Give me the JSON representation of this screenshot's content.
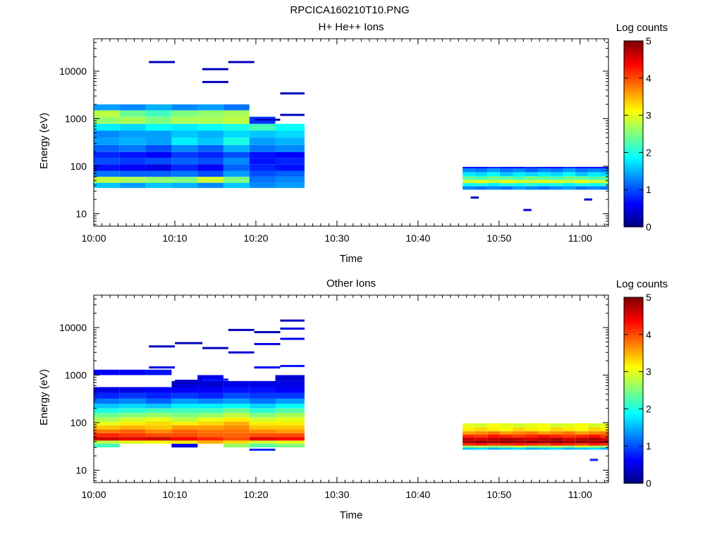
{
  "figure_title": "RPCICA160210T10.PNG",
  "colormap": [
    "#00007f",
    "#0000ff",
    "#007fff",
    "#00ffff",
    "#7fff7f",
    "#ffff00",
    "#ff7f00",
    "#ff0000",
    "#7f0000"
  ],
  "chart_data": [
    {
      "type": "heatmap",
      "title": "H+ He++ Ions",
      "xlabel": "Time",
      "ylabel": "Energy (eV)",
      "x_ticks": [
        "10:00",
        "10:10",
        "10:20",
        "10:30",
        "10:40",
        "10:50",
        "11:00"
      ],
      "x_range_minutes": [
        0,
        63.5
      ],
      "ylog": true,
      "y_ticks": [
        "10",
        "100",
        "1000",
        "10000"
      ],
      "ylim": [
        5.5,
        48000
      ],
      "colorbar": {
        "label": "Log counts",
        "range": [
          0,
          5
        ],
        "ticks": [
          "0",
          "1",
          "2",
          "3",
          "4",
          "5"
        ]
      },
      "columns_x_minutes": [
        0,
        3.2,
        6.4,
        9.6,
        12.8,
        16,
        19.2,
        22.4,
        26
      ],
      "columns_energy_eV": [
        35,
        45,
        60,
        80,
        110,
        150,
        200,
        280,
        400,
        560,
        780,
        1100,
        1500,
        2000
      ],
      "columns_log_counts": [
        [
          1.6,
          2.8,
          1.2,
          0.7,
          1.0,
          0.8,
          1.1,
          1.4,
          1.3,
          1.8,
          2.6,
          2.8,
          1.4,
          1.0
        ],
        [
          1.4,
          2.7,
          1.1,
          0.6,
          0.9,
          0.7,
          1.2,
          1.5,
          1.4,
          1.7,
          2.7,
          2.4,
          1.3,
          0.9
        ],
        [
          1.6,
          2.6,
          1.1,
          0.5,
          1.0,
          0.6,
          1.0,
          1.4,
          1.4,
          1.9,
          2.5,
          2.2,
          1.5,
          1.2
        ],
        [
          1.5,
          2.5,
          1.2,
          0.8,
          1.1,
          0.9,
          1.3,
          1.8,
          1.6,
          1.8,
          2.7,
          2.5,
          1.3,
          1.0
        ],
        [
          1.3,
          2.9,
          1.0,
          0.6,
          1.0,
          0.8,
          1.1,
          1.6,
          1.5,
          1.9,
          2.7,
          2.6,
          1.4,
          1.1
        ],
        [
          1.6,
          2.5,
          1.4,
          1.1,
          1.3,
          1.0,
          1.5,
          2.0,
          1.7,
          2.0,
          2.8,
          2.7,
          1.2,
          0.9
        ],
        [
          1.3,
          1.2,
          1.0,
          0.8,
          0.7,
          0.7,
          1.2,
          1.4,
          1.6,
          2.2,
          0.9,
          null,
          null,
          null
        ],
        [
          1.4,
          1.3,
          1.1,
          0.7,
          0.8,
          0.6,
          1.3,
          1.5,
          1.7,
          1.9,
          null,
          null,
          null,
          null
        ]
      ],
      "segment2_x_minutes": [
        45.5,
        47,
        48.6,
        50.1,
        51.7,
        53.2,
        54.8,
        56.3,
        57.9,
        59.4,
        61,
        62.5,
        63.5
      ],
      "segment2_energy_eV": [
        32,
        38,
        44,
        52,
        62,
        75,
        90,
        97
      ],
      "segment2_log_counts": [
        [
          1.3,
          1.9,
          2.9,
          2.3,
          1.8,
          1.3,
          0.7
        ],
        [
          1.2,
          2.0,
          3.0,
          2.2,
          1.7,
          1.2,
          0.6
        ],
        [
          1.3,
          1.8,
          2.8,
          2.4,
          1.9,
          1.4,
          0.8
        ],
        [
          1.2,
          2.0,
          3.0,
          2.3,
          1.6,
          1.2,
          0.7
        ],
        [
          1.4,
          1.9,
          2.9,
          2.2,
          1.8,
          1.3,
          0.6
        ],
        [
          1.3,
          2.1,
          2.8,
          2.4,
          1.7,
          1.1,
          0.8
        ],
        [
          1.2,
          1.9,
          3.0,
          2.3,
          1.8,
          1.3,
          0.7
        ],
        [
          1.3,
          2.0,
          2.9,
          2.2,
          1.7,
          1.2,
          0.6
        ],
        [
          1.4,
          1.8,
          2.8,
          2.4,
          1.9,
          1.4,
          0.8
        ],
        [
          1.2,
          2.0,
          3.0,
          2.3,
          1.6,
          1.2,
          0.7
        ],
        [
          1.3,
          1.9,
          2.9,
          2.2,
          1.8,
          1.3,
          0.6
        ],
        [
          1.2,
          2.1,
          2.8,
          2.3,
          1.7,
          1.2,
          0.7
        ]
      ],
      "sparse_marks": [
        {
          "x": [
            6.8,
            10
          ],
          "energy": 15500,
          "value": 0.3
        },
        {
          "x": [
            13.4,
            16.6
          ],
          "energy": 11000,
          "value": 0.3
        },
        {
          "x": [
            13.4,
            16.6
          ],
          "energy": 5900,
          "value": 0.3
        },
        {
          "x": [
            16.6,
            19.8
          ],
          "energy": 15500,
          "value": 0.3
        },
        {
          "x": [
            23,
            26
          ],
          "energy": 3400,
          "value": 0.3
        },
        {
          "x": [
            23,
            26
          ],
          "energy": 1200,
          "value": 0.3
        },
        {
          "x": [
            19.8,
            23
          ],
          "energy": 950,
          "value": 0.3
        },
        {
          "x": [
            46.5,
            47.5
          ],
          "energy": 22,
          "value": 0.3
        },
        {
          "x": [
            53,
            54
          ],
          "energy": 12,
          "value": 0.5
        },
        {
          "x": [
            60.5,
            61.5
          ],
          "energy": 20,
          "value": 0.4
        }
      ]
    },
    {
      "type": "heatmap",
      "title": "Other Ions",
      "xlabel": "Time",
      "ylabel": "Energy (eV)",
      "x_ticks": [
        "10:00",
        "10:10",
        "10:20",
        "10:30",
        "10:40",
        "10:50",
        "11:00"
      ],
      "x_range_minutes": [
        0,
        63.5
      ],
      "ylog": true,
      "y_ticks": [
        "10",
        "100",
        "1000",
        "10000"
      ],
      "ylim": [
        5.5,
        48000
      ],
      "colorbar": {
        "label": "Log counts",
        "range": [
          0,
          5
        ],
        "ticks": [
          "0",
          "1",
          "2",
          "3",
          "4",
          "5"
        ]
      },
      "columns_x_minutes": [
        0,
        3.2,
        6.4,
        9.6,
        12.8,
        16,
        19.2,
        22.4,
        26
      ],
      "columns_energy_eV": [
        30,
        36,
        42,
        50,
        60,
        72,
        88,
        105,
        130,
        160,
        200,
        250,
        320,
        420,
        560,
        750,
        1000,
        1300
      ],
      "columns_log_counts": [
        [
          2.2,
          2.8,
          4.6,
          4.2,
          3.8,
          3.4,
          3.0,
          2.7,
          2.4,
          2.0,
          1.6,
          1.2,
          0.8,
          0.5,
          null,
          null,
          0.6,
          0.5
        ],
        [
          null,
          3.0,
          4.5,
          4.1,
          3.9,
          3.5,
          3.2,
          2.9,
          2.5,
          2.1,
          1.7,
          1.3,
          0.9,
          0.5,
          null,
          null,
          0.6,
          0.4
        ],
        [
          null,
          3.1,
          4.6,
          4.0,
          3.7,
          3.4,
          3.3,
          3.0,
          2.6,
          2.2,
          1.6,
          1.1,
          0.8,
          0.6,
          null,
          null,
          0.7,
          0.5
        ],
        [
          0.4,
          3.2,
          4.4,
          4.0,
          3.9,
          3.6,
          3.2,
          2.8,
          2.5,
          2.2,
          1.8,
          1.4,
          0.9,
          0.6,
          0.3,
          null,
          null,
          0.5
        ],
        [
          null,
          3.5,
          4.2,
          3.9,
          3.8,
          3.6,
          3.3,
          3.0,
          2.6,
          2.2,
          1.8,
          1.3,
          0.8,
          0.6,
          0.4,
          0.5,
          null,
          null
        ],
        [
          2.6,
          3.3,
          4.0,
          3.9,
          3.8,
          3.7,
          3.5,
          3.2,
          2.8,
          2.4,
          1.9,
          1.4,
          1.0,
          0.7,
          0.5,
          null,
          null,
          null
        ],
        [
          2.3,
          2.9,
          4.5,
          4.0,
          3.7,
          3.4,
          3.2,
          2.9,
          2.5,
          2.1,
          1.7,
          1.2,
          0.9,
          0.7,
          0.5,
          null,
          null,
          null
        ],
        [
          2.5,
          3.0,
          4.4,
          4.0,
          3.6,
          3.4,
          3.2,
          3.0,
          2.7,
          2.3,
          1.9,
          1.4,
          0.9,
          0.6,
          0.5,
          0.4,
          null,
          null
        ]
      ],
      "segment2_x_minutes": [
        45.5,
        47,
        48.6,
        50.1,
        51.7,
        53.2,
        54.8,
        56.3,
        57.9,
        59.4,
        61,
        62.5,
        63.5
      ],
      "segment2_energy_eV": [
        27,
        30,
        33,
        37,
        42,
        48,
        56,
        66,
        80,
        97
      ],
      "segment2_log_counts": [
        [
          1.6,
          2.6,
          4.2,
          4.8,
          4.7,
          4.2,
          3.6,
          3.2,
          3.0
        ],
        [
          1.7,
          2.8,
          4.3,
          4.9,
          4.6,
          4.1,
          3.7,
          3.3,
          2.9
        ],
        [
          1.5,
          2.6,
          4.1,
          4.8,
          4.7,
          4.3,
          3.8,
          3.2,
          3.1
        ],
        [
          1.6,
          2.7,
          4.2,
          4.9,
          4.8,
          4.2,
          3.6,
          3.1,
          3.0
        ],
        [
          1.7,
          2.9,
          4.3,
          4.8,
          4.7,
          4.1,
          3.7,
          3.3,
          2.9
        ],
        [
          1.5,
          2.6,
          4.2,
          4.9,
          4.6,
          4.2,
          3.8,
          3.2,
          3.0
        ],
        [
          1.6,
          2.7,
          4.1,
          4.8,
          4.7,
          4.3,
          3.6,
          3.1,
          3.1
        ],
        [
          1.7,
          2.8,
          4.3,
          4.9,
          4.8,
          4.2,
          3.7,
          3.3,
          2.9
        ],
        [
          1.5,
          2.6,
          4.2,
          4.8,
          4.6,
          4.1,
          3.8,
          3.2,
          3.0
        ],
        [
          1.6,
          2.9,
          4.1,
          4.9,
          4.7,
          4.2,
          3.6,
          3.1,
          3.1
        ],
        [
          1.7,
          2.7,
          4.3,
          4.8,
          4.8,
          4.3,
          3.7,
          3.3,
          2.9
        ],
        [
          1.5,
          2.6,
          4.2,
          4.9,
          4.6,
          4.1,
          3.8,
          3.2,
          3.0
        ]
      ],
      "sparse_marks": [
        {
          "x": [
            6.8,
            10
          ],
          "energy": 4000,
          "value": 0.3
        },
        {
          "x": [
            10,
            13.4
          ],
          "energy": 4700,
          "value": 0.3
        },
        {
          "x": [
            13.4,
            16.6
          ],
          "energy": 3700,
          "value": 0.3
        },
        {
          "x": [
            16.6,
            19.8
          ],
          "energy": 8900,
          "value": 0.3
        },
        {
          "x": [
            16.6,
            19.8
          ],
          "energy": 3000,
          "value": 0.4
        },
        {
          "x": [
            19.8,
            23
          ],
          "energy": 8000,
          "value": 0.3
        },
        {
          "x": [
            19.8,
            23
          ],
          "energy": 4500,
          "value": 0.5
        },
        {
          "x": [
            23,
            26
          ],
          "energy": 14000,
          "value": 0.3
        },
        {
          "x": [
            23,
            26
          ],
          "energy": 9500,
          "value": 0.5
        },
        {
          "x": [
            23,
            26
          ],
          "energy": 5800,
          "value": 0.6
        },
        {
          "x": [
            6.8,
            10
          ],
          "energy": 1450,
          "value": 0.5
        },
        {
          "x": [
            10,
            13.4
          ],
          "energy": 760,
          "value": 0.4
        },
        {
          "x": [
            10,
            13.4
          ],
          "energy": 620,
          "value": 0.5
        },
        {
          "x": [
            13.4,
            16.6
          ],
          "energy": 800,
          "value": 0.7
        },
        {
          "x": [
            19.8,
            23
          ],
          "energy": 1450,
          "value": 0.6
        },
        {
          "x": [
            23,
            26
          ],
          "energy": 1550,
          "value": 0.7
        },
        {
          "x": [
            23,
            26
          ],
          "energy": 950,
          "value": 0.4
        },
        {
          "x": [
            9.6,
            12.8
          ],
          "energy": 34,
          "value": 0.6
        },
        {
          "x": [
            19.2,
            22.4
          ],
          "energy": 27,
          "value": 0.8
        },
        {
          "x": [
            61.2,
            62.2
          ],
          "energy": 16.5,
          "value": 0.8
        }
      ]
    }
  ]
}
